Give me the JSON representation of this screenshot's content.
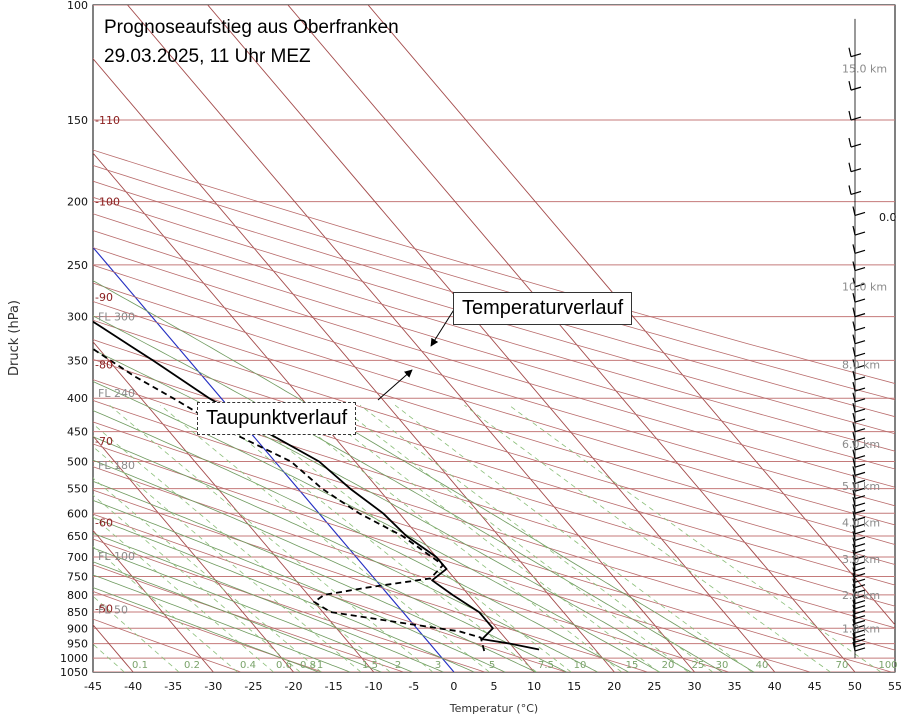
{
  "chart_data": {
    "type": "line",
    "title": "Prognoseaufstieg aus Oberfranken",
    "subtitle": "29.03.2025, 11 Uhr MEZ",
    "xlabel": "Temperatur (°C)",
    "ylabel": "Druck (hPa)",
    "xlim": [
      -45,
      55
    ],
    "ylim": [
      1050,
      100
    ],
    "x_ticks": [
      -45,
      -40,
      -35,
      -30,
      -25,
      -20,
      -15,
      -10,
      -5,
      0,
      5,
      10,
      15,
      20,
      25,
      30,
      35,
      40,
      45,
      50,
      55
    ],
    "y_ticks": [
      100,
      150,
      200,
      250,
      300,
      350,
      400,
      450,
      500,
      550,
      600,
      650,
      700,
      750,
      800,
      850,
      900,
      950,
      1000,
      1050
    ],
    "flight_levels": [
      {
        "label": "FL 300",
        "p": 300
      },
      {
        "label": "FL 240",
        "p": 393
      },
      {
        "label": "FL 180",
        "p": 506
      },
      {
        "label": "FL 100",
        "p": 697
      },
      {
        "label": "FL 50",
        "p": 843
      }
    ],
    "isotherm_labels": [
      {
        "label": "-110",
        "p": 150
      },
      {
        "label": "-100",
        "p": 200
      },
      {
        "label": "-90",
        "p": 280
      },
      {
        "label": "-80",
        "p": 355
      },
      {
        "label": "-70",
        "p": 465
      },
      {
        "label": "-60",
        "p": 620
      },
      {
        "label": "-50",
        "p": 840
      }
    ],
    "mixing_ratio_labels": [
      "0.1",
      "0.2",
      "0.4",
      "0.6",
      "0.8",
      "1",
      "1.5",
      "2",
      "3",
      "5",
      "7.5",
      "10",
      "15",
      "20",
      "25",
      "30",
      "40",
      "70",
      "100"
    ],
    "height_labels": [
      {
        "label": "15.0 km",
        "p": 125
      },
      {
        "label": "10.0 km",
        "p": 270
      },
      {
        "label": "8.0 km",
        "p": 355
      },
      {
        "label": "6.0 km",
        "p": 470
      },
      {
        "label": "5.0 km",
        "p": 545
      },
      {
        "label": "4.0 km",
        "p": 620
      },
      {
        "label": "3.0 km",
        "p": 705
      },
      {
        "label": "2.0 km",
        "p": 800
      },
      {
        "label": "1.0 km",
        "p": 900
      }
    ],
    "zero_isotherm_label": "0.0",
    "series": [
      {
        "name": "Temperaturverlauf",
        "style": "solid",
        "color": "#000000",
        "points": [
          [
            13,
            970
          ],
          [
            10,
            950
          ],
          [
            7,
            935
          ],
          [
            9.5,
            900
          ],
          [
            9.5,
            850
          ],
          [
            8,
            800
          ],
          [
            7,
            760
          ],
          [
            10,
            730
          ],
          [
            10,
            700
          ],
          [
            8.5,
            650
          ],
          [
            8,
            600
          ],
          [
            6.5,
            550
          ],
          [
            5.5,
            500
          ],
          [
            2,
            450
          ],
          [
            -1.5,
            400
          ],
          [
            -4.5,
            350
          ],
          [
            -7.5,
            310
          ],
          [
            -10,
            280
          ],
          [
            -12.5,
            262
          ],
          [
            -15,
            245
          ],
          [
            -20,
            225
          ],
          [
            -25,
            205
          ],
          [
            -31,
            185
          ],
          [
            -35,
            170
          ],
          [
            -42,
            150
          ],
          [
            -49,
            130
          ],
          [
            -55,
            110
          ],
          [
            -58,
            100
          ]
        ]
      },
      {
        "name": "Taupunktverlauf",
        "style": "dashed",
        "color": "#000000",
        "points": [
          [
            6,
            975
          ],
          [
            7,
            930
          ],
          [
            5,
            910
          ],
          [
            -2,
            880
          ],
          [
            -9,
            850
          ],
          [
            -10,
            820
          ],
          [
            -8,
            800
          ],
          [
            -2,
            780
          ],
          [
            7,
            755
          ],
          [
            10,
            720
          ],
          [
            8,
            650
          ],
          [
            5,
            600
          ],
          [
            3,
            550
          ],
          [
            2,
            500
          ],
          [
            -2.5,
            450
          ],
          [
            -6,
            400
          ],
          [
            -8.5,
            370
          ],
          [
            -10.5,
            340
          ],
          [
            -12.5,
            310
          ],
          [
            -15,
            290
          ],
          [
            -17,
            265
          ],
          [
            -23,
            240
          ],
          [
            -28,
            225
          ],
          [
            -29,
            215
          ],
          [
            -28,
            205
          ],
          [
            -33,
            185
          ],
          [
            -38,
            170
          ],
          [
            -42,
            150
          ],
          [
            -46,
            130
          ],
          [
            -51,
            110
          ],
          [
            -55,
            100
          ]
        ]
      }
    ],
    "annotations": {
      "temperature": "Temperaturverlauf",
      "dewpoint": "Taupunktverlauf"
    }
  }
}
